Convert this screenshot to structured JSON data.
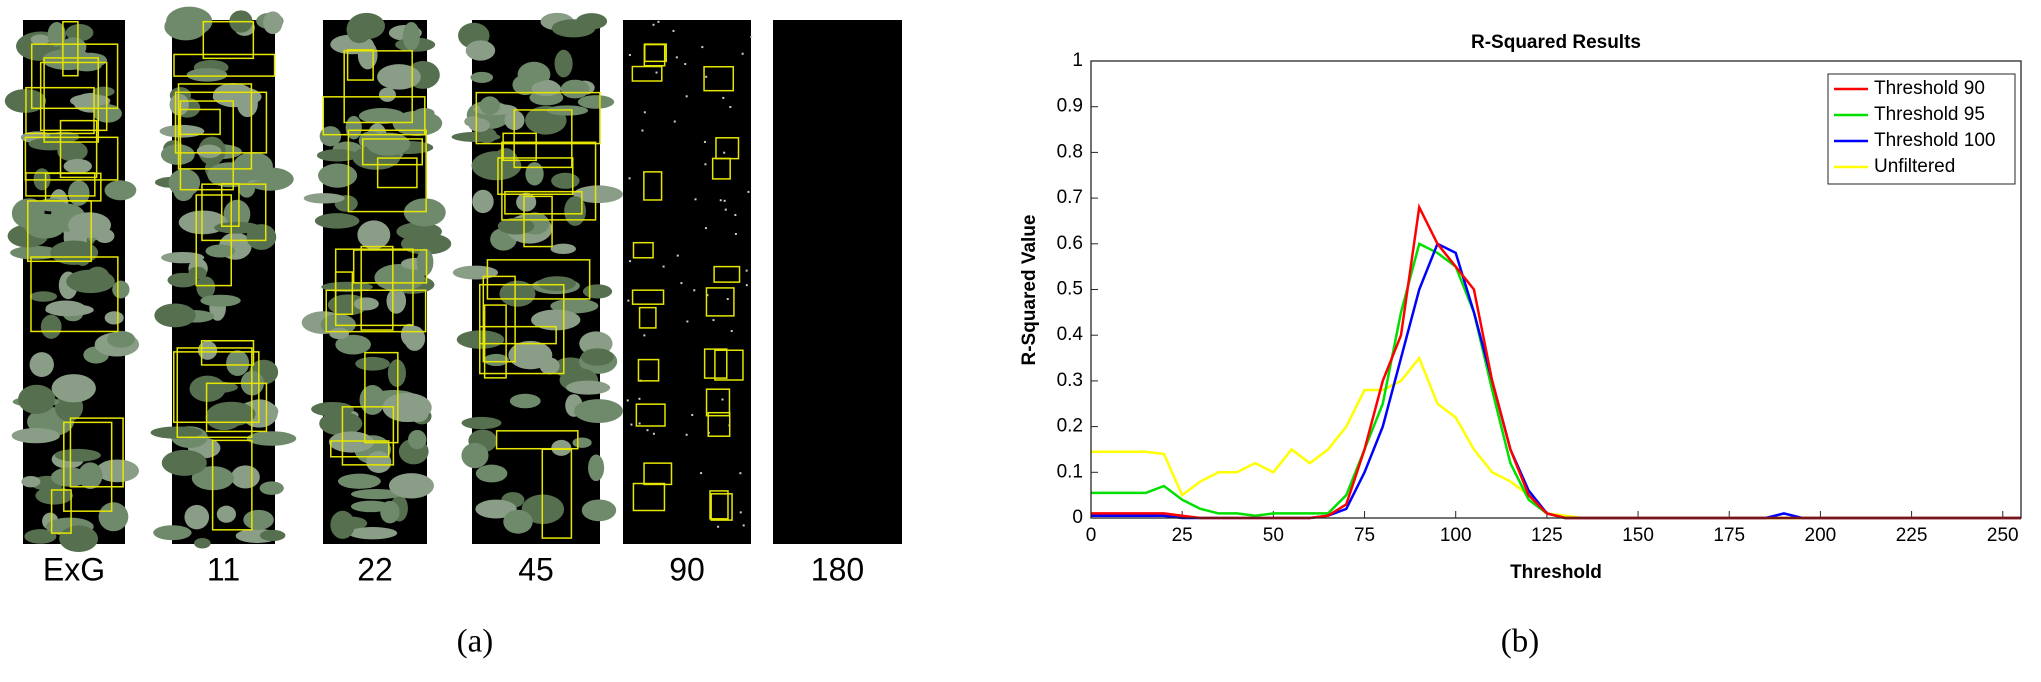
{
  "panel_a": {
    "labels": [
      "ExG",
      "11",
      "22",
      "45",
      "90",
      "180"
    ],
    "caption": "(a)"
  },
  "chart_data": {
    "type": "line",
    "title": "R-Squared Results",
    "x_label": "Threshold",
    "y_label": "R-Squared Value",
    "caption": "(b)",
    "x": [
      0,
      5,
      10,
      15,
      20,
      25,
      30,
      35,
      40,
      45,
      50,
      55,
      60,
      65,
      70,
      75,
      80,
      85,
      90,
      95,
      100,
      105,
      110,
      115,
      120,
      125,
      130,
      135,
      140,
      145,
      150,
      155,
      160,
      165,
      170,
      175,
      180,
      185,
      190,
      195,
      200,
      205,
      210,
      215,
      220,
      225,
      230,
      235,
      240,
      245,
      250,
      255
    ],
    "series": [
      {
        "name": "Threshold 90",
        "color": "#ff0000",
        "values": [
          0.01,
          0.01,
          0.01,
          0.01,
          0.01,
          0.005,
          0,
          0,
          0,
          0,
          0,
          0,
          0,
          0.005,
          0.03,
          0.15,
          0.3,
          0.4,
          0.68,
          0.6,
          0.55,
          0.5,
          0.3,
          0.15,
          0.05,
          0.01,
          0,
          0,
          0,
          0,
          0,
          0,
          0,
          0,
          0,
          0,
          0,
          0,
          0,
          0,
          0,
          0,
          0,
          0,
          0,
          0,
          0,
          0,
          0,
          0,
          0,
          0
        ]
      },
      {
        "name": "Threshold 95",
        "color": "#00e000",
        "values": [
          0.055,
          0.055,
          0.055,
          0.055,
          0.07,
          0.04,
          0.02,
          0.01,
          0.01,
          0.005,
          0.01,
          0.01,
          0.01,
          0.01,
          0.05,
          0.15,
          0.25,
          0.45,
          0.6,
          0.58,
          0.55,
          0.45,
          0.28,
          0.12,
          0.04,
          0.01,
          0,
          0,
          0,
          0,
          0,
          0,
          0,
          0,
          0,
          0,
          0,
          0,
          0,
          0,
          0,
          0,
          0,
          0,
          0,
          0,
          0,
          0,
          0,
          0,
          0,
          0
        ]
      },
      {
        "name": "Threshold 100",
        "color": "#0000ff",
        "values": [
          0.005,
          0.005,
          0.005,
          0.005,
          0.005,
          0,
          0,
          0,
          0,
          0,
          0,
          0,
          0,
          0.005,
          0.02,
          0.1,
          0.2,
          0.35,
          0.5,
          0.6,
          0.58,
          0.45,
          0.3,
          0.15,
          0.06,
          0.01,
          0,
          0,
          0,
          0,
          0,
          0,
          0,
          0,
          0,
          0,
          0,
          0,
          0.01,
          0,
          0,
          0,
          0,
          0,
          0,
          0,
          0,
          0,
          0,
          0,
          0,
          0
        ]
      },
      {
        "name": "Unfiltered",
        "color": "#ffff00",
        "values": [
          0.145,
          0.145,
          0.145,
          0.145,
          0.14,
          0.05,
          0.08,
          0.1,
          0.1,
          0.12,
          0.1,
          0.15,
          0.12,
          0.15,
          0.2,
          0.28,
          0.28,
          0.3,
          0.35,
          0.25,
          0.22,
          0.15,
          0.1,
          0.08,
          0.05,
          0.01,
          0.005,
          0,
          0,
          0,
          0,
          0,
          0,
          0,
          0,
          0,
          0,
          0,
          0,
          0,
          0,
          0,
          0,
          0,
          0,
          0,
          0,
          0,
          0,
          0,
          0,
          0
        ]
      }
    ],
    "xlim": [
      0,
      255
    ],
    "ylim": [
      0,
      1
    ],
    "xticks": [
      0,
      25,
      50,
      75,
      100,
      125,
      150,
      175,
      200,
      225,
      250
    ],
    "yticks": [
      0,
      0.1,
      0.2,
      0.3,
      0.4,
      0.5,
      0.6,
      0.7,
      0.8,
      0.9,
      1
    ],
    "legend": "top-right"
  }
}
